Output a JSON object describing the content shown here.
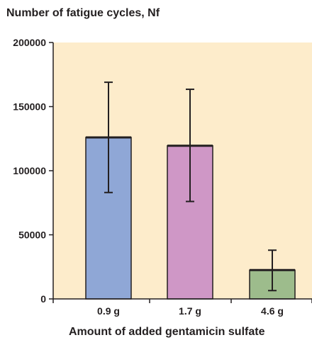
{
  "chart_data": {
    "type": "bar",
    "title": "Number of fatigue cycles, Nf",
    "xlabel": "Amount of added gentamicin sulfate",
    "ylabel": "",
    "categories": [
      "0.9 g",
      "1.7 g",
      "4.6 g"
    ],
    "values": [
      126000,
      119500,
      22500
    ],
    "error_low": [
      83000,
      76000,
      6500
    ],
    "error_high": [
      169000,
      163500,
      38000
    ],
    "ylim": [
      0,
      200000
    ],
    "yticks": [
      0,
      50000,
      100000,
      150000,
      200000
    ],
    "ytick_labels": [
      "0",
      "50000",
      "100000",
      "150000",
      "200000"
    ],
    "grid": false,
    "legend": "none",
    "colors": {
      "plot_background": "#fdeccb",
      "bars": [
        "#8fa7d6",
        "#cf97c6",
        "#9dbc8c"
      ],
      "axis": "#231f20"
    }
  }
}
